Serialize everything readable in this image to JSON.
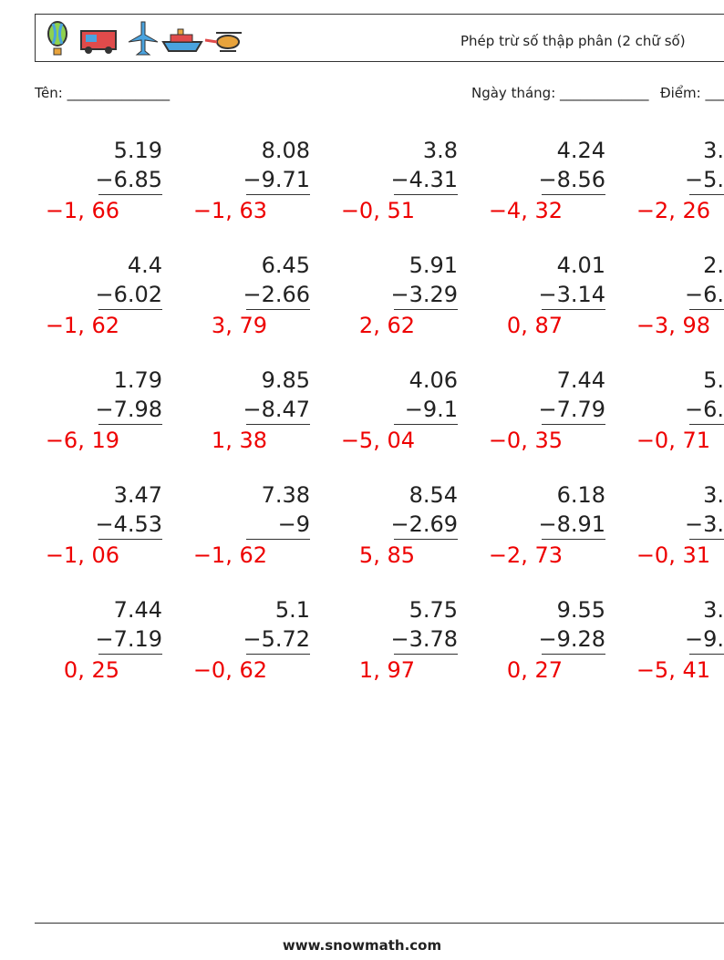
{
  "header": {
    "title": "Phép trừ số thập phân (2 chữ số)"
  },
  "fields": {
    "name": "Tên: _______________",
    "date": "Ngày tháng: _____________",
    "score": "Điểm: ___"
  },
  "problems": [
    [
      {
        "top": "5.19",
        "bottom": "−6.85",
        "answer": "−1, 66"
      },
      {
        "top": "8.08",
        "bottom": "−9.71",
        "answer": "−1, 63"
      },
      {
        "top": "3.8",
        "bottom": "−4.31",
        "answer": "−0, 51"
      },
      {
        "top": "4.24",
        "bottom": "−8.56",
        "answer": "−4, 32"
      },
      {
        "top": "3.",
        "bottom": "−5.",
        "answer": "−2, 26"
      }
    ],
    [
      {
        "top": "4.4",
        "bottom": "−6.02",
        "answer": "−1, 62"
      },
      {
        "top": "6.45",
        "bottom": "−2.66",
        "answer": "3, 79"
      },
      {
        "top": "5.91",
        "bottom": "−3.29",
        "answer": "2, 62"
      },
      {
        "top": "4.01",
        "bottom": "−3.14",
        "answer": "0, 87"
      },
      {
        "top": "2.",
        "bottom": "−6.",
        "answer": "−3, 98"
      }
    ],
    [
      {
        "top": "1.79",
        "bottom": "−7.98",
        "answer": "−6, 19"
      },
      {
        "top": "9.85",
        "bottom": "−8.47",
        "answer": "1, 38"
      },
      {
        "top": "4.06",
        "bottom": "−9.1",
        "answer": "−5, 04"
      },
      {
        "top": "7.44",
        "bottom": "−7.79",
        "answer": "−0, 35"
      },
      {
        "top": "5.",
        "bottom": "−6.",
        "answer": "−0, 71"
      }
    ],
    [
      {
        "top": "3.47",
        "bottom": "−4.53",
        "answer": "−1, 06"
      },
      {
        "top": "7.38",
        "bottom": "−9",
        "answer": "−1, 62"
      },
      {
        "top": "8.54",
        "bottom": "−2.69",
        "answer": "5, 85"
      },
      {
        "top": "6.18",
        "bottom": "−8.91",
        "answer": "−2, 73"
      },
      {
        "top": "3.",
        "bottom": "−3.",
        "answer": "−0, 31"
      }
    ],
    [
      {
        "top": "7.44",
        "bottom": "−7.19",
        "answer": "0, 25"
      },
      {
        "top": "5.1",
        "bottom": "−5.72",
        "answer": "−0, 62"
      },
      {
        "top": "5.75",
        "bottom": "−3.78",
        "answer": "1, 97"
      },
      {
        "top": "9.55",
        "bottom": "−9.28",
        "answer": "0, 27"
      },
      {
        "top": "3.",
        "bottom": "−9.",
        "answer": "−5, 41"
      }
    ]
  ],
  "footer": {
    "site": "www.snowmath.com"
  }
}
